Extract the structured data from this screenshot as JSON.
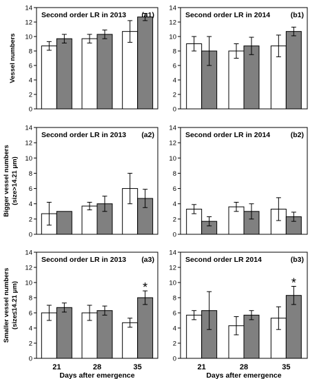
{
  "chart_data": [
    {
      "type": "bar",
      "panel": "a1",
      "title": "Second order LR in 2013",
      "label": "(a1)",
      "categories": [
        "21",
        "28",
        "35"
      ],
      "series": [
        {
          "color": "#ffffff",
          "values": [
            8.7,
            9.7,
            10.7
          ],
          "errors": [
            0.6,
            0.6,
            1.5
          ]
        },
        {
          "color": "#808080",
          "values": [
            9.7,
            10.3,
            12.7
          ],
          "errors": [
            0.6,
            0.6,
            0.5
          ]
        }
      ],
      "ylim": [
        0,
        14
      ],
      "yticks": [
        0,
        2,
        4,
        6,
        8,
        10,
        12,
        14
      ],
      "ylabel": [
        "Vessel numbers"
      ],
      "xlabel": "",
      "significant": []
    },
    {
      "type": "bar",
      "panel": "b1",
      "title": "Second order LR in 2014",
      "label": "(b1)",
      "categories": [
        "21",
        "28",
        "35"
      ],
      "series": [
        {
          "color": "#ffffff",
          "values": [
            9.0,
            8.0,
            8.7
          ],
          "errors": [
            1.0,
            1.0,
            1.5
          ]
        },
        {
          "color": "#808080",
          "values": [
            8.0,
            8.7,
            10.7
          ],
          "errors": [
            2.0,
            1.2,
            0.6
          ]
        }
      ],
      "ylim": [
        0,
        14
      ],
      "yticks": [
        0,
        2,
        4,
        6,
        8,
        10,
        12,
        14
      ],
      "ylabel": [],
      "xlabel": "",
      "significant": []
    },
    {
      "type": "bar",
      "panel": "a2",
      "title": "Second order LR in 2013",
      "label": "(a2)",
      "categories": [
        "21",
        "28",
        "35"
      ],
      "series": [
        {
          "color": "#ffffff",
          "values": [
            2.7,
            3.7,
            6.0
          ],
          "errors": [
            1.5,
            0.5,
            2.0
          ]
        },
        {
          "color": "#808080",
          "values": [
            3.0,
            4.0,
            4.7
          ],
          "errors": [
            0.0,
            1.0,
            1.2
          ]
        }
      ],
      "ylim": [
        0,
        14
      ],
      "yticks": [
        0,
        2,
        4,
        6,
        8,
        10,
        12,
        14
      ],
      "ylabel": [
        "Bigger vessel numbers",
        "(size>14.21 μm)"
      ],
      "xlabel": "",
      "significant": []
    },
    {
      "type": "bar",
      "panel": "b2",
      "title": "Second order LR in 2014",
      "label": "(b2)",
      "categories": [
        "21",
        "28",
        "35"
      ],
      "series": [
        {
          "color": "#ffffff",
          "values": [
            3.3,
            3.6,
            3.3
          ],
          "errors": [
            0.6,
            0.6,
            1.5
          ]
        },
        {
          "color": "#808080",
          "values": [
            1.7,
            3.0,
            2.3
          ],
          "errors": [
            0.6,
            1.0,
            0.6
          ]
        }
      ],
      "ylim": [
        0,
        14
      ],
      "yticks": [
        0,
        2,
        4,
        6,
        8,
        10,
        12,
        14
      ],
      "ylabel": [],
      "xlabel": "",
      "significant": []
    },
    {
      "type": "bar",
      "panel": "a3",
      "title": "Second order LR in 2013",
      "label": "(a3)",
      "categories": [
        "21",
        "28",
        "35"
      ],
      "series": [
        {
          "color": "#ffffff",
          "values": [
            6.0,
            6.0,
            4.7
          ],
          "errors": [
            1.0,
            1.0,
            0.6
          ]
        },
        {
          "color": "#808080",
          "values": [
            6.7,
            6.3,
            8.0
          ],
          "errors": [
            0.6,
            0.6,
            0.9
          ]
        }
      ],
      "ylim": [
        0,
        14
      ],
      "yticks": [
        0,
        2,
        4,
        6,
        8,
        10,
        12,
        14
      ],
      "ylabel": [
        "Smaller vessel numbers",
        "(size≤14.21 μm)"
      ],
      "xlabel": "Days after emergence",
      "significant": [
        {
          "category": 2,
          "series": 1,
          "symbol": "*"
        }
      ]
    },
    {
      "type": "bar",
      "panel": "b3",
      "title": "Second order LR 2014",
      "label": "(b3)",
      "categories": [
        "21",
        "28",
        "35"
      ],
      "series": [
        {
          "color": "#ffffff",
          "values": [
            5.7,
            4.3,
            5.3
          ],
          "errors": [
            0.6,
            1.2,
            1.5
          ]
        },
        {
          "color": "#808080",
          "values": [
            6.3,
            5.7,
            8.3
          ],
          "errors": [
            2.5,
            0.6,
            1.2
          ]
        }
      ],
      "ylim": [
        0,
        14
      ],
      "yticks": [
        0,
        2,
        4,
        6,
        8,
        10,
        12,
        14
      ],
      "ylabel": [],
      "xlabel": "Days after emergence",
      "significant": [
        {
          "category": 2,
          "series": 1,
          "symbol": "*"
        }
      ]
    }
  ]
}
